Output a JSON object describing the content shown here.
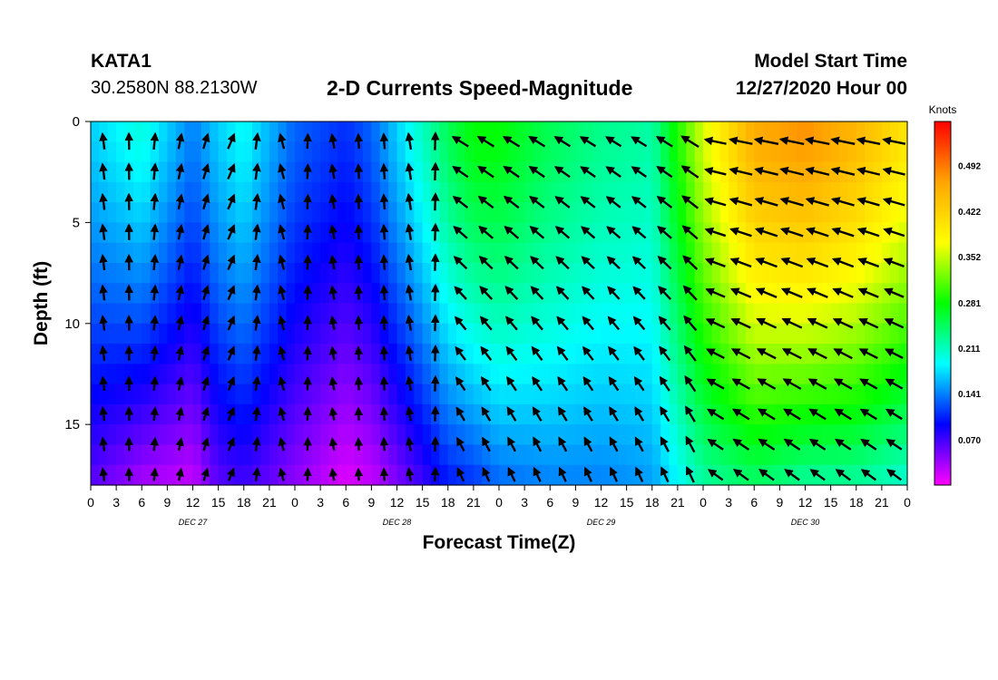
{
  "header": {
    "station": "KATA1",
    "coords": "30.2580N 88.2130W",
    "title": "2-D Currents Speed-Magnitude",
    "model_start_label": "Model Start Time",
    "model_start_value": "12/27/2020 Hour 00"
  },
  "colors": {
    "scale": [
      "#ff00ff",
      "#0000ff",
      "#00ffff",
      "#00ff00",
      "#ffff00",
      "#ffa500",
      "#ff0000"
    ],
    "arrow": "#000000"
  },
  "chart_data": {
    "type": "heatmap",
    "xlabel": "Forecast Time(Z)",
    "ylabel": "Depth (ft)",
    "x_tick_labels": [
      "0",
      "3",
      "6",
      "9",
      "12",
      "15",
      "18",
      "21",
      "0",
      "3",
      "6",
      "9",
      "12",
      "15",
      "18",
      "21",
      "0",
      "3",
      "6",
      "9",
      "12",
      "15",
      "18",
      "21",
      "0",
      "3",
      "6",
      "9",
      "12",
      "15",
      "18",
      "21",
      "0"
    ],
    "date_labels": [
      "DEC 27",
      "DEC 28",
      "DEC 29",
      "DEC 30"
    ],
    "xlim_hours": [
      0,
      96
    ],
    "y_ticks": [
      0,
      5,
      10,
      15
    ],
    "ylim": [
      0,
      18
    ],
    "y_inverted": true,
    "colorbar": {
      "label": "Knots",
      "ticks": [
        "0.492",
        "0.422",
        "0.352",
        "0.281",
        "0.211",
        "0.141",
        "0.070"
      ],
      "range": [
        0,
        0.56
      ]
    },
    "grid": false,
    "speed_profile": {
      "hours": [
        0,
        6,
        12,
        15,
        18,
        24,
        30,
        33,
        39,
        42,
        45,
        48,
        54,
        60,
        66,
        72,
        78,
        84,
        90,
        96
      ],
      "surface_knots": [
        0.17,
        0.2,
        0.14,
        0.17,
        0.19,
        0.13,
        0.11,
        0.13,
        0.21,
        0.25,
        0.28,
        0.28,
        0.25,
        0.23,
        0.22,
        0.36,
        0.46,
        0.48,
        0.45,
        0.4
      ],
      "bottom_knots": [
        0.06,
        0.03,
        0.02,
        0.06,
        0.07,
        0.04,
        0.01,
        0.02,
        0.07,
        0.1,
        0.11,
        0.13,
        0.14,
        0.14,
        0.15,
        0.22,
        0.24,
        0.22,
        0.22,
        0.2
      ]
    }
  }
}
